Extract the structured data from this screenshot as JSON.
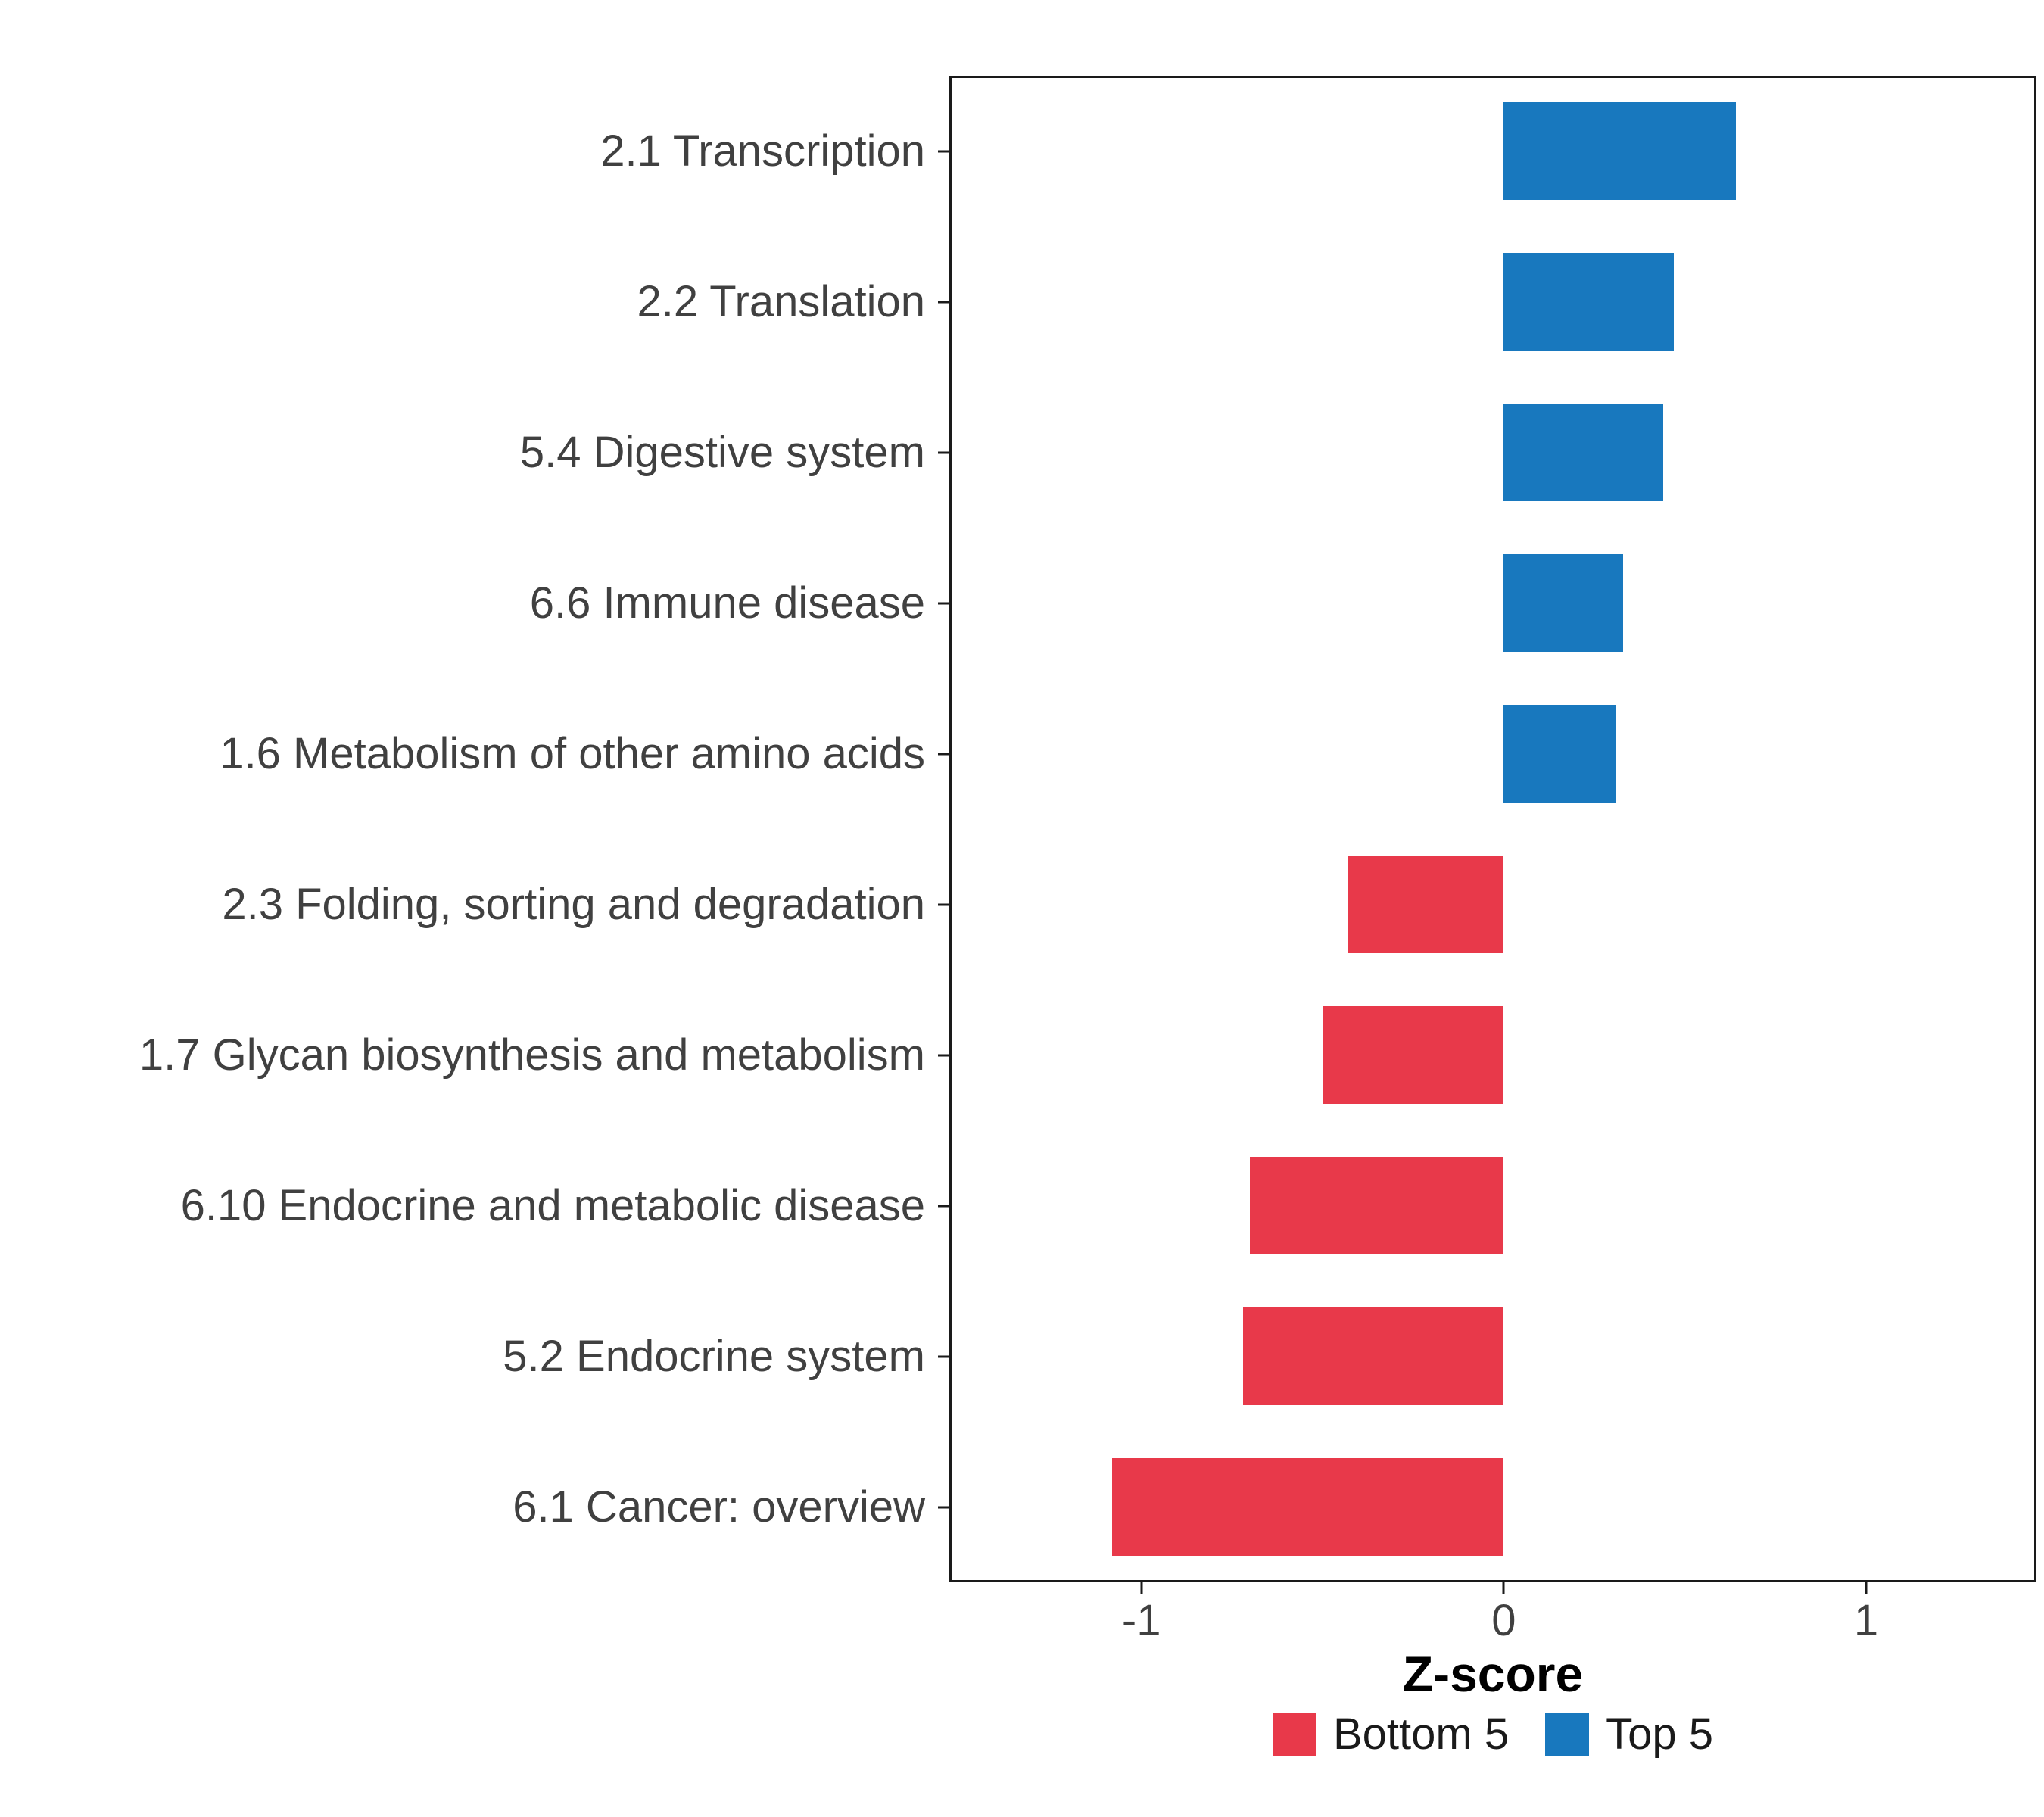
{
  "chart_data": {
    "type": "bar",
    "orientation": "horizontal",
    "title": "",
    "xlabel": "Z-score",
    "xlim": [
      -1.53,
      1.47
    ],
    "x_ticks": [
      {
        "value": -1,
        "label": "-1"
      },
      {
        "value": 0,
        "label": "0"
      },
      {
        "value": 1,
        "label": "1"
      }
    ],
    "grid": false,
    "legend_position": "bottom",
    "categories": [
      "2.1 Transcription",
      "2.2 Translation",
      "5.4 Digestive system",
      "6.6 Immune disease",
      "1.6 Metabolism of other amino acids",
      "2.3 Folding, sorting and degradation",
      "1.7 Glycan biosynthesis and metabolism",
      "6.10 Endocrine and metabolic disease",
      "5.2 Endocrine system",
      "6.1 Cancer: overview"
    ],
    "values": [
      0.64,
      0.47,
      0.44,
      0.33,
      0.31,
      -0.43,
      -0.5,
      -0.7,
      -0.72,
      -1.08
    ],
    "groups": [
      "Top 5",
      "Top 5",
      "Top 5",
      "Top 5",
      "Top 5",
      "Bottom 5",
      "Bottom 5",
      "Bottom 5",
      "Bottom 5",
      "Bottom 5"
    ],
    "colors": {
      "Bottom 5": "#E8394A",
      "Top 5": "#1878BE"
    },
    "legend": [
      {
        "label": "Bottom 5",
        "color": "#E8394A"
      },
      {
        "label": "Top 5",
        "color": "#1878BE"
      }
    ]
  }
}
